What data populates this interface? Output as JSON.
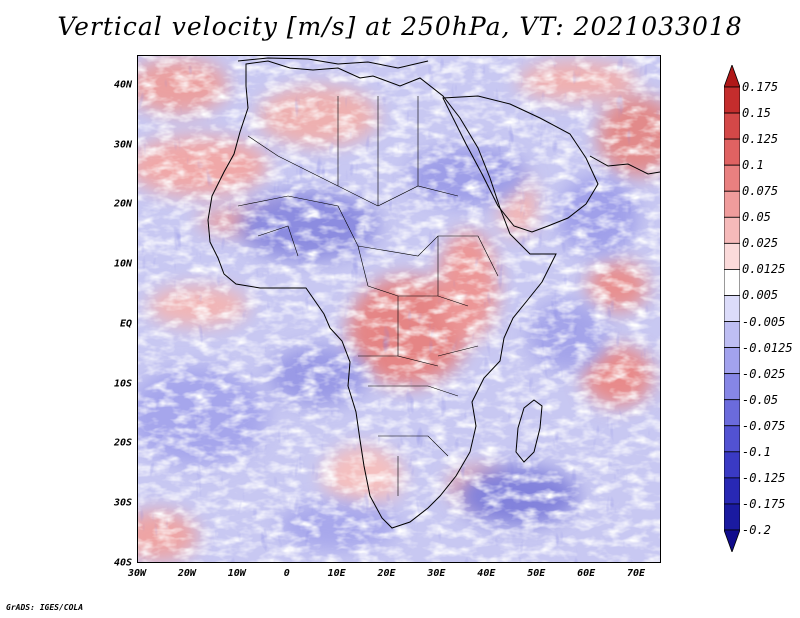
{
  "title": "Vertical velocity [m/s] at 250hPa, VT: 2021033018",
  "footer": "GrADS: IGES/COLA",
  "map": {
    "projection": "lat-lon",
    "lon_range": [
      -30,
      75
    ],
    "lat_range": [
      -40,
      45
    ],
    "ylabels": [
      {
        "lat": 40,
        "text": "40N"
      },
      {
        "lat": 30,
        "text": "30N"
      },
      {
        "lat": 20,
        "text": "20N"
      },
      {
        "lat": 10,
        "text": "10N"
      },
      {
        "lat": 0,
        "text": "EQ"
      },
      {
        "lat": -10,
        "text": "10S"
      },
      {
        "lat": -20,
        "text": "20S"
      },
      {
        "lat": -30,
        "text": "30S"
      },
      {
        "lat": -40,
        "text": "40S"
      }
    ],
    "xlabels": [
      {
        "lon": -30,
        "text": "30W"
      },
      {
        "lon": -20,
        "text": "20W"
      },
      {
        "lon": -10,
        "text": "10W"
      },
      {
        "lon": 0,
        "text": "0"
      },
      {
        "lon": 10,
        "text": "10E"
      },
      {
        "lon": 20,
        "text": "20E"
      },
      {
        "lon": 30,
        "text": "30E"
      },
      {
        "lon": 40,
        "text": "40E"
      },
      {
        "lon": 50,
        "text": "50E"
      },
      {
        "lon": 60,
        "text": "60E"
      },
      {
        "lon": 70,
        "text": "70E"
      }
    ]
  },
  "colorbar": {
    "levels": [
      "0.175",
      "0.15",
      "0.125",
      "0.1",
      "0.075",
      "0.05",
      "0.025",
      "0.0125",
      "0.005",
      "-0.005",
      "-0.0125",
      "-0.025",
      "-0.05",
      "-0.075",
      "-0.1",
      "-0.125",
      "-0.175",
      "-0.2"
    ],
    "colors": [
      "#b01818",
      "#c42d2d",
      "#d44848",
      "#e06262",
      "#e98080",
      "#f09c9c",
      "#f6baba",
      "#fbdada",
      "#ffffff",
      "#dcdcfa",
      "#bebef3",
      "#a2a2ee",
      "#8686e6",
      "#6b6bdc",
      "#5252d2",
      "#3a3ac4",
      "#2828b4",
      "#1a1aa0",
      "#100c8c"
    ]
  }
}
